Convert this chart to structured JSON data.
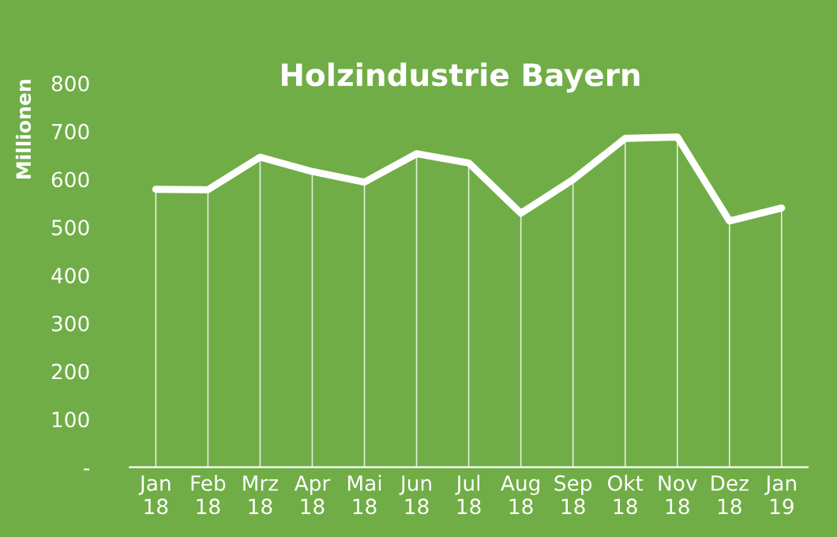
{
  "chart_data": {
    "type": "line",
    "title": "Holzindustrie Bayern",
    "ylabel": "Millionen",
    "categories": [
      "Jan\n18",
      "Feb\n18",
      "Mrz\n18",
      "Apr\n18",
      "Mai\n18",
      "Jun\n18",
      "Jul\n18",
      "Aug\n18",
      "Sep\n18",
      "Okt\n18",
      "Nov\n18",
      "Dez\n18",
      "Jan\n19"
    ],
    "series": [
      {
        "type": "bar",
        "color": "#ffffff",
        "values": [
          579,
          578,
          646,
          616,
          594,
          653,
          634,
          529,
          599,
          685,
          688,
          513,
          540
        ]
      },
      {
        "color": "#ffffff",
        "values": [
          579,
          578,
          646,
          616,
          594,
          653,
          634,
          529,
          599,
          685,
          688,
          513,
          540
        ]
      }
    ],
    "ylim": [
      0,
      800
    ],
    "yticks": [
      {
        "value": 0,
        "label": "-"
      },
      100,
      200,
      300,
      400,
      500,
      600,
      700,
      800
    ],
    "grid": false,
    "legend": false,
    "marker": "none",
    "line_style": "solid"
  }
}
